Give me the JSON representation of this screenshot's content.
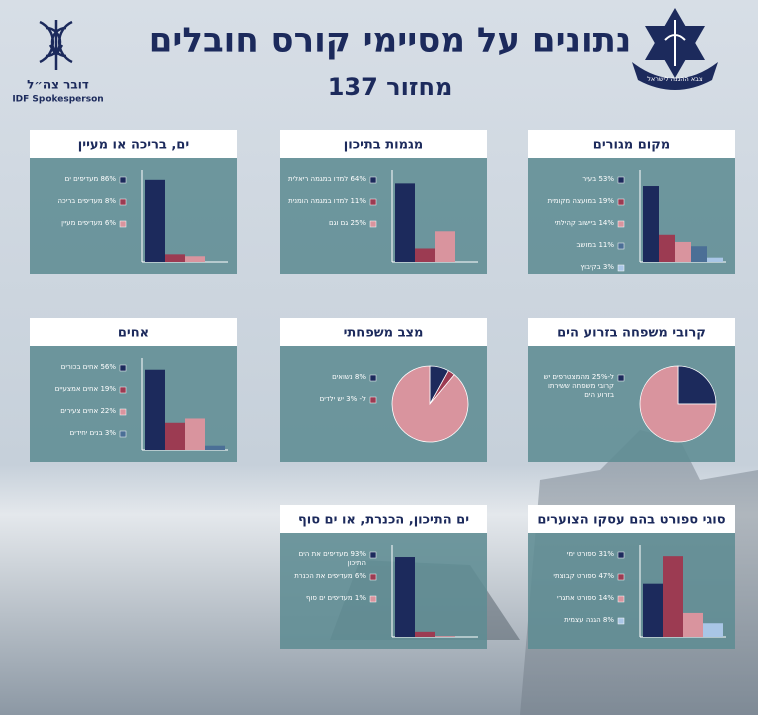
{
  "header": {
    "title": "נתונים על מסיימי קורס חובלים",
    "subtitle": "מחזור 137",
    "spokesperson_he": "דובר צה״ל",
    "spokesperson_en": "IDF Spokesperson",
    "emblem": "צבא ההגנה לישראל"
  },
  "chart_data": [
    {
      "type": "bar",
      "title": "מקום מגורים",
      "categories": [
        "53% בעיר",
        "19% במועצה מקומית",
        "14% ביישוב קהילתי",
        "11% במושב",
        "3% בקיבוץ"
      ],
      "values": [
        53,
        19,
        14,
        11,
        3
      ],
      "colors": [
        "#1c2a5c",
        "#9c3b52",
        "#d9949e",
        "#4b6f96",
        "#a9c6e6"
      ],
      "ylim": [
        0,
        60
      ]
    },
    {
      "type": "bar",
      "title": "מגמות בתיכון",
      "categories": [
        "64% למדו במגמה ריאלית",
        "11% למדו במגמה הומנית",
        "25% גם וגם"
      ],
      "values": [
        64,
        11,
        25
      ],
      "colors": [
        "#1c2a5c",
        "#9c3b52",
        "#d9949e"
      ],
      "ylim": [
        0,
        70
      ]
    },
    {
      "type": "bar",
      "title": "ים, בריכה או מעיין",
      "categories": [
        "86% מעדיפים ים",
        "8% מעדיפים בריכה",
        "6% מעדיפים מעיין"
      ],
      "values": [
        86,
        8,
        6
      ],
      "colors": [
        "#1c2a5c",
        "#9c3b52",
        "#d9949e"
      ],
      "ylim": [
        0,
        90
      ]
    },
    {
      "type": "pie",
      "title": "קרובי משפחה בזרוע הים",
      "categories": [
        "ל-25% מהמצטרפים יש קרובי משפחה ששירתו בזרוע הים",
        null
      ],
      "values": [
        25,
        75
      ],
      "colors": [
        "#1c2a5c",
        "#d9949e"
      ]
    },
    {
      "type": "pie",
      "title": "מצב משפחתי",
      "categories": [
        "8% נשואים",
        "ל- 3% יש ילדים",
        null
      ],
      "values": [
        8,
        3,
        89
      ],
      "colors": [
        "#1c2a5c",
        "#9c3b52",
        "#d9949e"
      ]
    },
    {
      "type": "bar",
      "title": "אחים",
      "categories": [
        "56% אחים בכורים",
        "19% אחים אמצעיים",
        "22% אחים צעירים",
        "3% בנים יחידים"
      ],
      "values": [
        56,
        19,
        22,
        3
      ],
      "colors": [
        "#1c2a5c",
        "#9c3b52",
        "#d9949e",
        "#4b6f96"
      ],
      "ylim": [
        0,
        60
      ]
    },
    {
      "type": "bar",
      "title": "סוגי ספורט בהם עסקו הצוערים",
      "categories": [
        "31% ספורט ימי",
        "47% ספורט קבוצתי",
        "14% ספורט אתגרי",
        "8% הגנה עצמית"
      ],
      "values": [
        31,
        47,
        14,
        8
      ],
      "colors": [
        "#1c2a5c",
        "#9c3b52",
        "#d9949e",
        "#a9c6e6"
      ],
      "ylim": [
        0,
        50
      ]
    },
    {
      "type": "bar",
      "title": "ים התיכון, הכנרת, או ים סוף",
      "categories": [
        "93% מעדיפים את הים התיכון",
        "6% מעדיפים את הכנרת",
        "1% מעדיפים ים סוף"
      ],
      "values": [
        93,
        6,
        1
      ],
      "colors": [
        "#1c2a5c",
        "#9c3b52",
        "#d9949e"
      ],
      "ylim": [
        0,
        100
      ]
    }
  ]
}
